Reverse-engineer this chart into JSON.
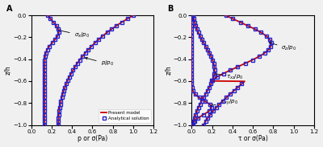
{
  "panel_A": {
    "title": "A",
    "xlabel": "p or σ(Pa)",
    "ylabel": "z/h",
    "xlim": [
      0,
      1.2
    ],
    "ylim": [
      -1,
      0
    ],
    "xticks": [
      0,
      0.2,
      0.4,
      0.6,
      0.8,
      1.0,
      1.2
    ],
    "yticks": [
      0,
      -0.2,
      -0.4,
      -0.6,
      -0.8,
      -1.0
    ]
  },
  "panel_B": {
    "title": "B",
    "xlabel": "τ or σ(Pa)",
    "ylabel": "z/h",
    "xlim": [
      0,
      1.2
    ],
    "ylim": [
      -1,
      0
    ],
    "xticks": [
      0,
      0.2,
      0.4,
      0.6,
      0.8,
      1.0,
      1.2
    ],
    "yticks": [
      0,
      -0.2,
      -0.4,
      -0.6,
      -0.8,
      -1.0
    ]
  },
  "line_color_model": "#cc0000",
  "marker_color": "#2222cc",
  "legend_items": [
    "Present model",
    "Analytical solution"
  ],
  "background_color": "#f0f0f0"
}
